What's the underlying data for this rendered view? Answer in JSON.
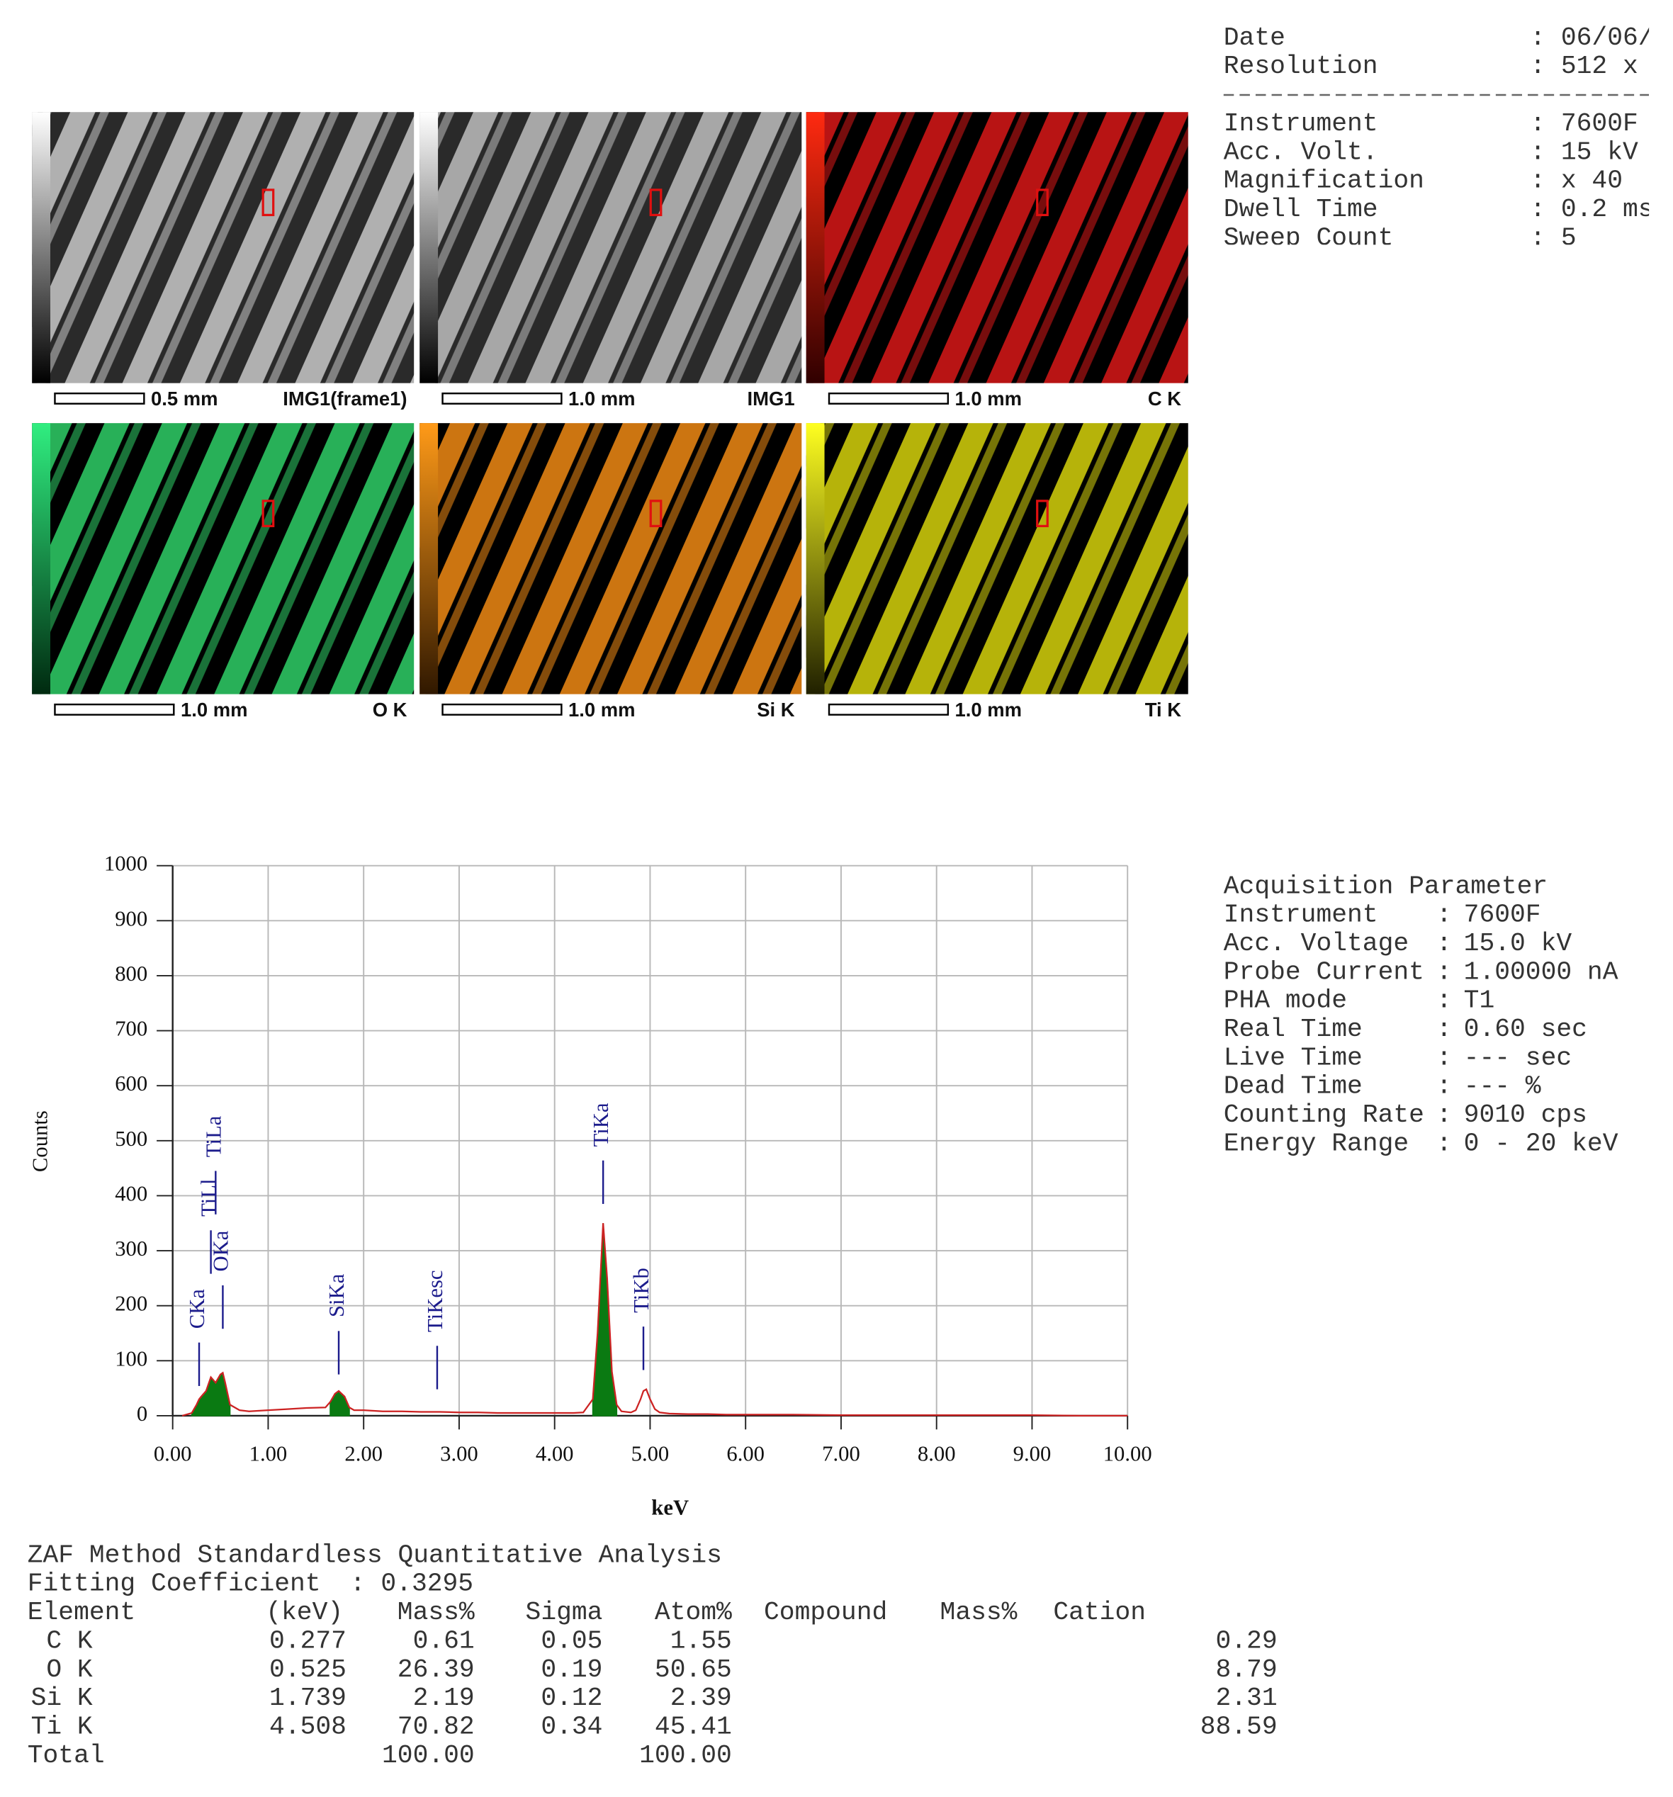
{
  "header": {
    "sep": ":",
    "rows": [
      {
        "label": "Date",
        "value": "06/06/"
      },
      {
        "label": "Resolution",
        "value": "512 x"
      }
    ],
    "rows2": [
      {
        "label": "Instrument",
        "value": "7600F"
      },
      {
        "label": "Acc. Volt.",
        "value": "15 kV"
      },
      {
        "label": "Magnification",
        "value": "x 40"
      },
      {
        "label": "Dwell Time",
        "value": "0.2 ms"
      },
      {
        "label": "Sweep Count",
        "value": "5"
      }
    ]
  },
  "map_panels": [
    {
      "scale": "0.5 mm",
      "label": "IMG1(frame1)"
    },
    {
      "scale": "1.0 mm",
      "label": "IMG1"
    },
    {
      "scale": "1.0 mm",
      "label": "C K"
    },
    {
      "scale": "1.0 mm",
      "label": "O K"
    },
    {
      "scale": "1.0 mm",
      "label": "Si K"
    },
    {
      "scale": "1.0 mm",
      "label": "Ti K"
    }
  ],
  "chart_data": {
    "type": "line",
    "xlabel": "keV",
    "ylabel": "Counts",
    "xlim": [
      0,
      10
    ],
    "ylim": [
      0,
      1000
    ],
    "xticks": [
      {
        "value": 0,
        "label": "0.00"
      },
      {
        "value": 1,
        "label": "1.00"
      },
      {
        "value": 2,
        "label": "2.00"
      },
      {
        "value": 3,
        "label": "3.00"
      },
      {
        "value": 4,
        "label": "4.00"
      },
      {
        "value": 5,
        "label": "5.00"
      },
      {
        "value": 6,
        "label": "6.00"
      },
      {
        "value": 7,
        "label": "7.00"
      },
      {
        "value": 8,
        "label": "8.00"
      },
      {
        "value": 9,
        "label": "9.00"
      },
      {
        "value": 10,
        "label": "10.00"
      }
    ],
    "yticks": [
      0,
      100,
      200,
      300,
      400,
      500,
      600,
      700,
      800,
      900,
      1000
    ],
    "grid": true,
    "x": [
      0.1,
      0.2,
      0.25,
      0.277,
      0.3,
      0.35,
      0.4,
      0.45,
      0.5,
      0.525,
      0.55,
      0.6,
      0.7,
      0.8,
      1.0,
      1.2,
      1.4,
      1.6,
      1.65,
      1.7,
      1.739,
      1.8,
      1.85,
      1.9,
      2.0,
      2.2,
      2.4,
      2.6,
      2.8,
      3.0,
      3.2,
      3.4,
      3.6,
      3.8,
      4.0,
      4.2,
      4.3,
      4.4,
      4.45,
      4.508,
      4.55,
      4.6,
      4.65,
      4.7,
      4.8,
      4.85,
      4.9,
      4.93,
      4.96,
      5.0,
      5.05,
      5.1,
      5.2,
      5.4,
      5.6,
      5.8,
      6.0,
      6.5,
      7.0,
      7.5,
      8.0,
      8.5,
      9.0,
      9.5,
      10.0
    ],
    "series": [
      {
        "style": "area",
        "color": "#0a7a12",
        "values": [
          null,
          5,
          20,
          30,
          35,
          45,
          70,
          60,
          75,
          78,
          60,
          20,
          null,
          null,
          null,
          null,
          null,
          null,
          25,
          40,
          45,
          35,
          15,
          null,
          null,
          null,
          null,
          null,
          null,
          null,
          null,
          null,
          null,
          null,
          null,
          null,
          null,
          30,
          150,
          350,
          250,
          80,
          20,
          null,
          null,
          null,
          null,
          null,
          null,
          null,
          null,
          null,
          null,
          null,
          null,
          null,
          null,
          null,
          null,
          null,
          null,
          null,
          null,
          null,
          null
        ]
      },
      {
        "style": "line",
        "color": "#cc2222",
        "values": [
          0,
          5,
          20,
          30,
          35,
          45,
          70,
          60,
          75,
          78,
          60,
          20,
          10,
          8,
          10,
          12,
          14,
          15,
          25,
          40,
          45,
          35,
          15,
          10,
          10,
          8,
          8,
          7,
          7,
          6,
          6,
          5,
          5,
          5,
          5,
          5,
          6,
          30,
          150,
          350,
          250,
          80,
          20,
          8,
          6,
          10,
          30,
          45,
          48,
          30,
          12,
          6,
          4,
          3,
          3,
          2,
          2,
          2,
          1,
          1,
          1,
          1,
          1,
          0,
          0
        ]
      }
    ],
    "annotation_color": "#1c1c8c",
    "annotations": [
      {
        "text": "CKa",
        "x": 0.277,
        "y": 158
      },
      {
        "text": "TiLl",
        "x": 0.4,
        "y": 362
      },
      {
        "text": "TiLa",
        "x": 0.45,
        "y": 470
      },
      {
        "text": "OKa",
        "x": 0.525,
        "y": 262
      },
      {
        "text": "SiKa",
        "x": 1.739,
        "y": 179
      },
      {
        "text": "TiKesc",
        "x": 2.77,
        "y": 152
      },
      {
        "text": "TiKa",
        "x": 4.508,
        "y": 489
      },
      {
        "text": "TiKb",
        "x": 4.93,
        "y": 187
      }
    ]
  },
  "acquisition": {
    "title": "Acquisition Parameter",
    "sep": ":",
    "rows": [
      {
        "label": "Instrument",
        "value": "7600F"
      },
      {
        "label": "Acc. Voltage",
        "value": "15.0 kV"
      },
      {
        "label": "Probe Current",
        "value": "1.00000 nA"
      },
      {
        "label": "PHA mode",
        "value": "T1"
      },
      {
        "label": "Real Time",
        "value": "0.60 sec"
      },
      {
        "label": "Live Time",
        "value": "--- sec"
      },
      {
        "label": "Dead Time",
        "value": "--- %"
      },
      {
        "label": "Counting Rate",
        "value": "9010 cps"
      },
      {
        "label": "Energy Range",
        "value": "0 - 20 keV"
      }
    ]
  },
  "table": {
    "title": "ZAF Method Standardless Quantitative Analysis",
    "fit_label": "Fitting Coefficient",
    "fit_sep": ":",
    "fit_value": "0.3295",
    "columns": [
      "Element",
      "(keV)",
      "Mass%",
      "Sigma",
      "Atom%",
      "Compound",
      "Mass%",
      "Cation"
    ],
    "rows": [
      {
        "element": "C K",
        "kev": "0.277",
        "mass": "0.61",
        "sigma": "0.05",
        "atom": "1.55",
        "cation": "0.29"
      },
      {
        "element": "O K",
        "kev": "0.525",
        "mass": "26.39",
        "sigma": "0.19",
        "atom": "50.65",
        "cation": "8.79"
      },
      {
        "element": "Si K",
        "kev": "1.739",
        "mass": "2.19",
        "sigma": "0.12",
        "atom": "2.39",
        "cation": "2.31"
      },
      {
        "element": "Ti K",
        "kev": "4.508",
        "mass": "70.82",
        "sigma": "0.34",
        "atom": "45.41",
        "cation": "88.59"
      }
    ],
    "total": {
      "element": "Total",
      "mass": "100.00",
      "atom": "100.00"
    }
  }
}
